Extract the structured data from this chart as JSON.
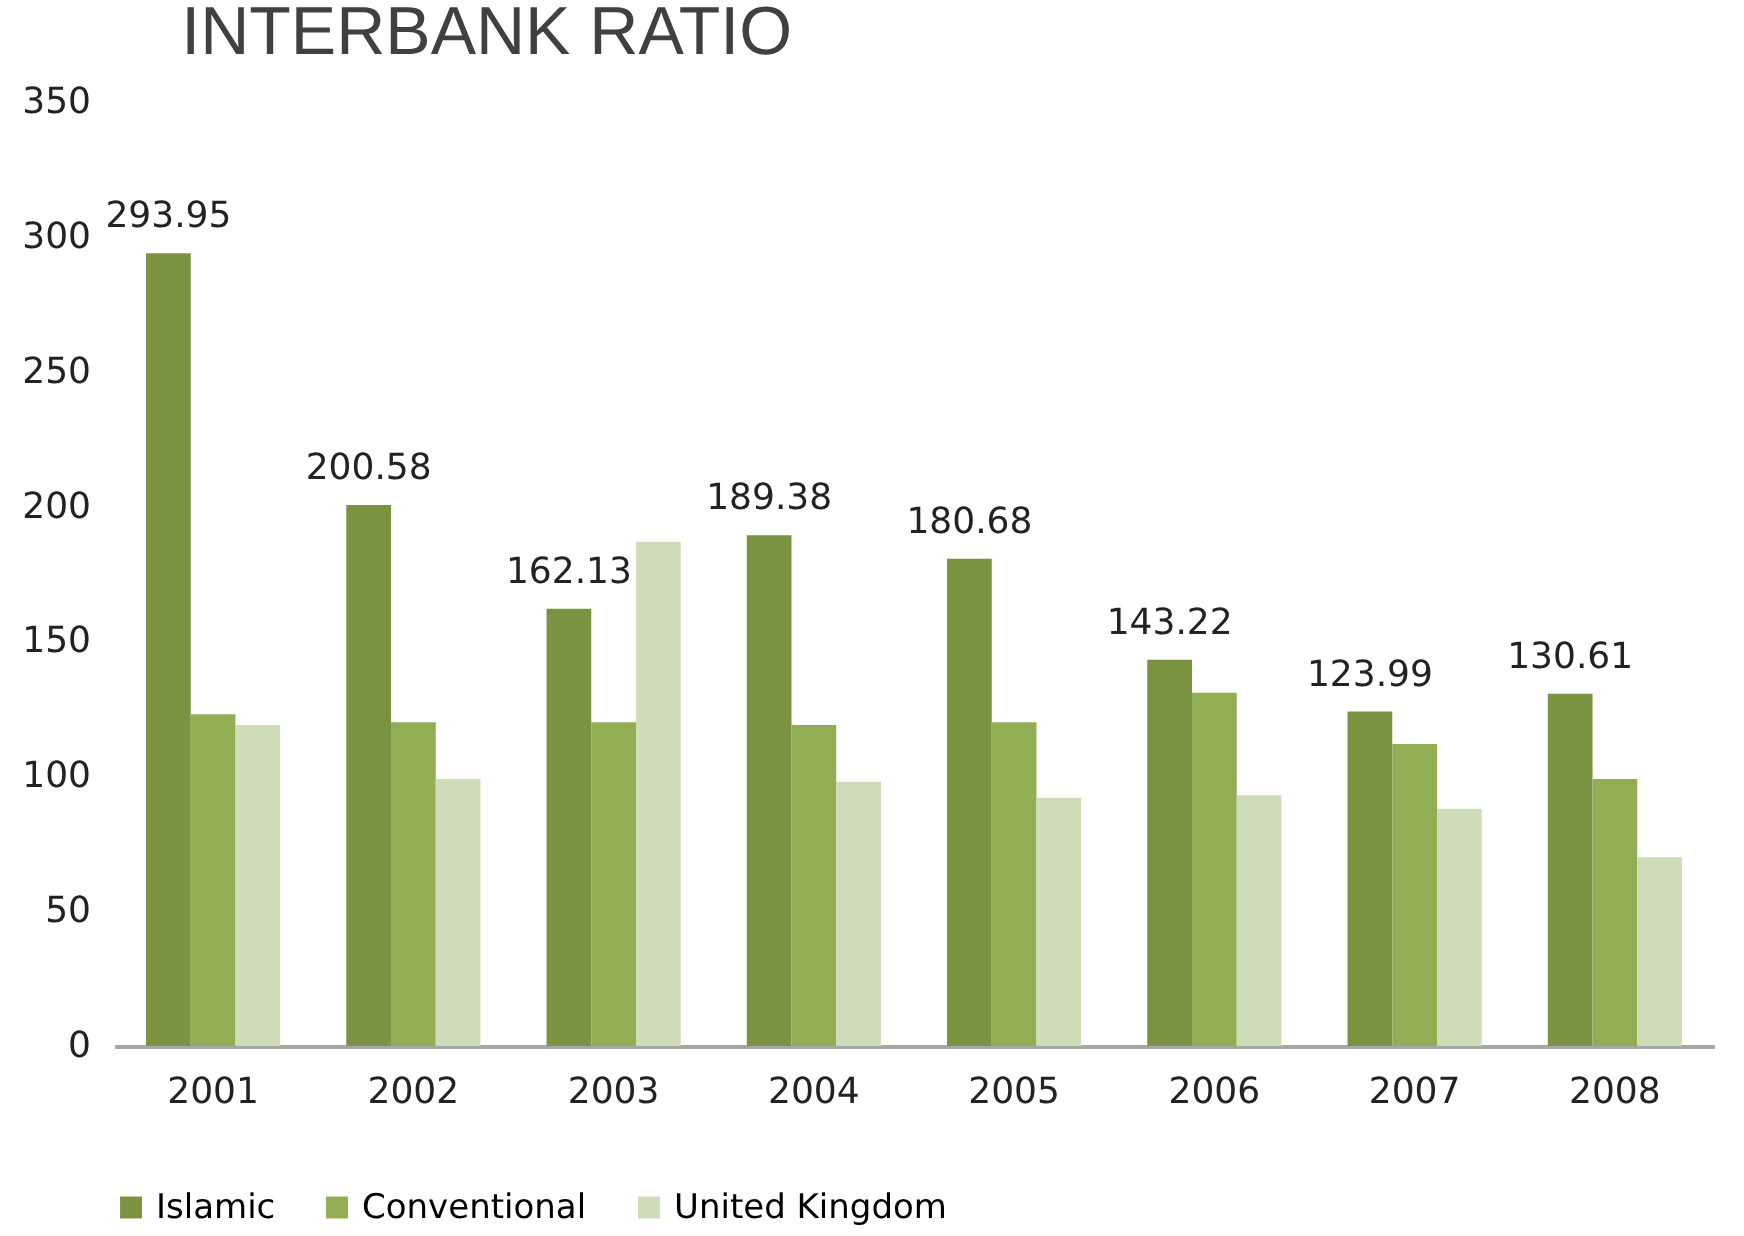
{
  "chart_data": {
    "type": "bar",
    "title": "INTERBANK RATIO",
    "categories": [
      "2001",
      "2002",
      "2003",
      "2004",
      "2005",
      "2006",
      "2007",
      "2008"
    ],
    "series": [
      {
        "name": "Islamic",
        "color": "#7a9341",
        "values": [
          293.95,
          200.58,
          162.13,
          189.38,
          180.68,
          143.22,
          123.99,
          130.61
        ],
        "value_labels": [
          "293.95",
          "200.58",
          "162.13",
          "189.38",
          "180.68",
          "143.22",
          "123.99",
          "130.61"
        ]
      },
      {
        "name": "Conventional",
        "color": "#91ae54",
        "values": [
          123,
          120,
          120,
          119,
          120,
          131,
          112,
          99
        ]
      },
      {
        "name": "United Kingdom",
        "color": "#cfdcb9",
        "values": [
          119,
          99,
          187,
          98,
          92,
          93,
          88,
          70
        ]
      }
    ],
    "ylim": [
      0,
      350
    ],
    "yticks": [
      0,
      50,
      100,
      150,
      200,
      250,
      300,
      350
    ],
    "grid": false,
    "legend": "bottom"
  }
}
